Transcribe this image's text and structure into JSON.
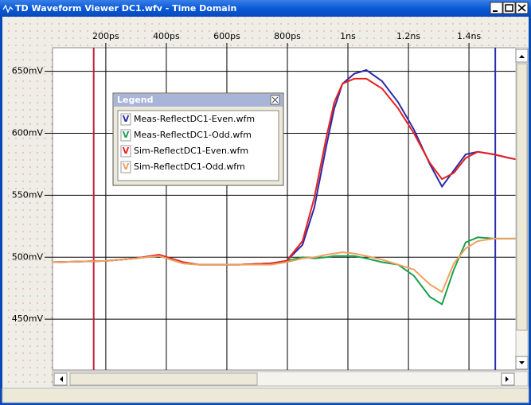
{
  "window": {
    "title": "TD Waveform Viewer DC1.wfv - Time Domain"
  },
  "chart_data": {
    "type": "line",
    "legend_title": "Legend",
    "legend_marker": "V",
    "x": [
      24,
      200,
      297,
      376,
      455,
      508,
      639,
      745,
      797,
      850,
      889,
      929,
      955,
      982,
      1021,
      1061,
      1113,
      1166,
      1218,
      1271,
      1311,
      1350,
      1389,
      1429,
      1482,
      1534,
      1555
    ],
    "series": [
      {
        "name": "Meas-ReflectDC1-Even.wfm",
        "color": "#2b2ba8",
        "values": [
          496,
          497,
          499,
          502,
          496,
          494,
          494,
          495,
          497,
          510,
          540,
          590,
          620,
          640,
          648,
          651,
          642,
          625,
          603,
          575,
          557,
          570,
          583,
          585,
          583,
          580,
          579
        ]
      },
      {
        "name": "Meas-ReflectDC1-Odd.wfm",
        "color": "#1aa04a",
        "values": [
          496,
          497,
          499,
          501,
          495,
          494,
          494,
          495,
          497,
          500,
          499,
          500,
          501,
          501,
          501,
          499,
          496,
          494,
          485,
          468,
          462,
          490,
          512,
          516,
          515,
          515,
          515
        ]
      },
      {
        "name": "Sim-ReflectDC1-Even.wfm",
        "color": "#e82020",
        "values": [
          496,
          497,
          499,
          502,
          496,
          494,
          494,
          495,
          497,
          513,
          548,
          597,
          625,
          640,
          644,
          644,
          636,
          620,
          600,
          576,
          563,
          568,
          580,
          585,
          583,
          580,
          579
        ]
      },
      {
        "name": "Sim-ReflectDC1-Odd.wfm",
        "color": "#f0a060",
        "values": [
          496,
          497,
          499,
          501,
          495,
          494,
          494,
          494,
          496,
          499,
          500,
          502,
          503,
          504,
          503,
          501,
          498,
          494,
          490,
          478,
          472,
          495,
          507,
          513,
          515,
          515,
          515
        ]
      }
    ],
    "xlim": [
      24,
      1555
    ],
    "xticks": [
      {
        "value": 200,
        "label": "200ps"
      },
      {
        "value": 400,
        "label": "400ps"
      },
      {
        "value": 600,
        "label": "600ps"
      },
      {
        "value": 800,
        "label": "800ps"
      },
      {
        "value": 1000,
        "label": "1ns"
      },
      {
        "value": 1200,
        "label": "1.2ns"
      },
      {
        "value": 1400,
        "label": "1.4ns"
      }
    ],
    "ylim": [
      409,
      669
    ],
    "yticks": [
      {
        "value": 450,
        "label": "450mV"
      },
      {
        "value": 500,
        "label": "500mV"
      },
      {
        "value": 550,
        "label": "550mV"
      },
      {
        "value": 600,
        "label": "600mV"
      },
      {
        "value": 650,
        "label": "650mV"
      }
    ],
    "grid": true,
    "cursors": [
      {
        "value": 160,
        "color": "#c0203a"
      },
      {
        "value": 1487,
        "color": "#2b2ba8"
      }
    ]
  }
}
